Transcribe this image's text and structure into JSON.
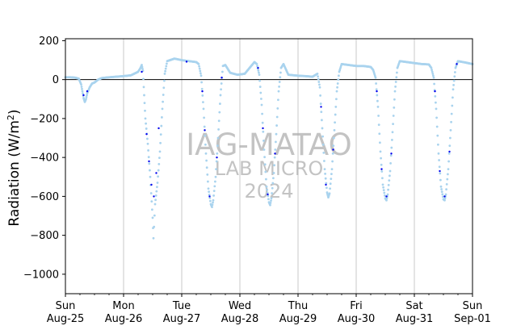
{
  "chart_data": {
    "type": "scatter",
    "ylabel": "Radiation (W/m²)",
    "ylabel_main": "Radiation (W/m",
    "ylabel_sup": "2",
    "ylabel_end": ")",
    "ylim": [
      -1100,
      210
    ],
    "yticks": [
      200,
      0,
      -200,
      -400,
      -600,
      -800,
      -1000
    ],
    "xlim": [
      "2024-08-25",
      "2024-09-01"
    ],
    "xticks": [
      {
        "date": "2024-08-25",
        "day": "Sun",
        "label": "Aug-25"
      },
      {
        "date": "2024-08-26",
        "day": "Mon",
        "label": "Aug-26"
      },
      {
        "date": "2024-08-27",
        "day": "Tue",
        "label": "Aug-27"
      },
      {
        "date": "2024-08-28",
        "day": "Wed",
        "label": "Aug-28"
      },
      {
        "date": "2024-08-29",
        "day": "Thu",
        "label": "Aug-29"
      },
      {
        "date": "2024-08-30",
        "day": "Fri",
        "label": "Aug-30"
      },
      {
        "date": "2024-08-31",
        "day": "Sat",
        "label": "Aug-31"
      },
      {
        "date": "2024-09-01",
        "day": "Sun",
        "label": "Sep-01"
      }
    ],
    "grid_x": true,
    "grid_y": false,
    "zero_line": true,
    "watermark": {
      "line1": "IAG-MATAO",
      "line2": "LAB MICRO",
      "line3": "2024"
    },
    "colors": {
      "series_light": "#a9d3ee",
      "series_dark": "#0000ee",
      "grid": "#c8c8c8",
      "watermark": "#b0b0b0"
    },
    "series": [
      {
        "color": "#a9d3ee",
        "points": [
          [
            "2024-08-25 00:00",
            12
          ],
          [
            "2024-08-25 02:00",
            12
          ],
          [
            "2024-08-25 04:00",
            10
          ],
          [
            "2024-08-25 05:30",
            5
          ],
          [
            "2024-08-25 06:30",
            -25
          ],
          [
            "2024-08-25 07:00",
            -60
          ],
          [
            "2024-08-25 07:30",
            -95
          ],
          [
            "2024-08-25 08:00",
            -115
          ],
          [
            "2024-08-25 08:30",
            -100
          ],
          [
            "2024-08-25 09:00",
            -70
          ],
          [
            "2024-08-25 10:00",
            -40
          ],
          [
            "2024-08-25 11:00",
            -20
          ],
          [
            "2024-08-25 12:00",
            -15
          ],
          [
            "2024-08-25 13:30",
            0
          ],
          [
            "2024-08-25 15:00",
            8
          ],
          [
            "2024-08-25 18:00",
            12
          ],
          [
            "2024-08-25 21:00",
            15
          ],
          [
            "2024-08-26 00:00",
            18
          ],
          [
            "2024-08-26 03:00",
            22
          ],
          [
            "2024-08-26 06:00",
            40
          ],
          [
            "2024-08-26 07:00",
            60
          ],
          [
            "2024-08-26 07:30",
            75
          ],
          [
            "2024-08-26 08:00",
            45
          ],
          [
            "2024-08-26 08:30",
            -80
          ],
          [
            "2024-08-26 09:00",
            -200
          ],
          [
            "2024-08-26 10:00",
            -330
          ],
          [
            "2024-08-26 11:00",
            -500
          ],
          [
            "2024-08-26 12:00",
            -710
          ],
          [
            "2024-08-26 12:20",
            -815
          ],
          [
            "2024-08-26 13:00",
            -640
          ],
          [
            "2024-08-26 14:00",
            -530
          ],
          [
            "2024-08-26 15:00",
            -370
          ],
          [
            "2024-08-26 16:00",
            -150
          ],
          [
            "2024-08-26 17:00",
            30
          ],
          [
            "2024-08-26 18:00",
            95
          ],
          [
            "2024-08-26 21:00",
            108
          ],
          [
            "2024-08-27 00:00",
            100
          ],
          [
            "2024-08-27 03:00",
            95
          ],
          [
            "2024-08-27 06:00",
            90
          ],
          [
            "2024-08-27 07:00",
            80
          ],
          [
            "2024-08-27 08:00",
            20
          ],
          [
            "2024-08-27 09:00",
            -150
          ],
          [
            "2024-08-27 10:00",
            -380
          ],
          [
            "2024-08-27 11:00",
            -560
          ],
          [
            "2024-08-27 12:00",
            -640
          ],
          [
            "2024-08-27 12:30",
            -655
          ],
          [
            "2024-08-27 13:00",
            -620
          ],
          [
            "2024-08-27 14:00",
            -500
          ],
          [
            "2024-08-27 15:00",
            -300
          ],
          [
            "2024-08-27 16:00",
            -80
          ],
          [
            "2024-08-27 17:00",
            70
          ],
          [
            "2024-08-27 18:00",
            75
          ],
          [
            "2024-08-27 20:00",
            35
          ],
          [
            "2024-08-27 23:00",
            25
          ],
          [
            "2024-08-28 02:00",
            30
          ],
          [
            "2024-08-28 06:00",
            90
          ],
          [
            "2024-08-28 07:00",
            80
          ],
          [
            "2024-08-28 08:00",
            25
          ],
          [
            "2024-08-28 09:00",
            -130
          ],
          [
            "2024-08-28 10:00",
            -360
          ],
          [
            "2024-08-28 11:00",
            -550
          ],
          [
            "2024-08-28 12:00",
            -630
          ],
          [
            "2024-08-28 12:30",
            -645
          ],
          [
            "2024-08-28 13:00",
            -610
          ],
          [
            "2024-08-28 14:00",
            -480
          ],
          [
            "2024-08-28 15:00",
            -280
          ],
          [
            "2024-08-28 16:00",
            -60
          ],
          [
            "2024-08-28 17:00",
            60
          ],
          [
            "2024-08-28 18:00",
            80
          ],
          [
            "2024-08-28 20:00",
            25
          ],
          [
            "2024-08-29 00:00",
            20
          ],
          [
            "2024-08-29 03:00",
            18
          ],
          [
            "2024-08-29 06:00",
            15
          ],
          [
            "2024-08-29 08:00",
            30
          ],
          [
            "2024-08-29 09:00",
            -40
          ],
          [
            "2024-08-29 10:00",
            -250
          ],
          [
            "2024-08-29 11:00",
            -460
          ],
          [
            "2024-08-29 12:00",
            -580
          ],
          [
            "2024-08-29 12:30",
            -605
          ],
          [
            "2024-08-29 13:00",
            -585
          ],
          [
            "2024-08-29 14:00",
            -460
          ],
          [
            "2024-08-29 15:00",
            -260
          ],
          [
            "2024-08-29 16:00",
            -60
          ],
          [
            "2024-08-29 17:00",
            40
          ],
          [
            "2024-08-29 18:00",
            80
          ],
          [
            "2024-08-29 21:00",
            75
          ],
          [
            "2024-08-30 00:00",
            70
          ],
          [
            "2024-08-30 03:00",
            70
          ],
          [
            "2024-08-30 06:00",
            65
          ],
          [
            "2024-08-30 07:00",
            50
          ],
          [
            "2024-08-30 08:00",
            10
          ],
          [
            "2024-08-30 09:00",
            -140
          ],
          [
            "2024-08-30 10:00",
            -370
          ],
          [
            "2024-08-30 11:00",
            -540
          ],
          [
            "2024-08-30 12:00",
            -610
          ],
          [
            "2024-08-30 12:30",
            -620
          ],
          [
            "2024-08-30 13:00",
            -590
          ],
          [
            "2024-08-30 14:00",
            -470
          ],
          [
            "2024-08-30 15:00",
            -270
          ],
          [
            "2024-08-30 16:00",
            -60
          ],
          [
            "2024-08-30 17:00",
            60
          ],
          [
            "2024-08-30 18:00",
            95
          ],
          [
            "2024-08-30 21:00",
            90
          ],
          [
            "2024-08-31 00:00",
            85
          ],
          [
            "2024-08-31 03:00",
            80
          ],
          [
            "2024-08-31 06:00",
            78
          ],
          [
            "2024-08-31 07:00",
            60
          ],
          [
            "2024-08-31 08:00",
            10
          ],
          [
            "2024-08-31 09:00",
            -150
          ],
          [
            "2024-08-31 10:00",
            -380
          ],
          [
            "2024-08-31 11:00",
            -550
          ],
          [
            "2024-08-31 12:00",
            -615
          ],
          [
            "2024-08-31 12:30",
            -620
          ],
          [
            "2024-08-31 13:00",
            -590
          ],
          [
            "2024-08-31 14:00",
            -460
          ],
          [
            "2024-08-31 15:00",
            -260
          ],
          [
            "2024-08-31 16:00",
            -50
          ],
          [
            "2024-08-31 17:00",
            60
          ],
          [
            "2024-08-31 18:00",
            95
          ],
          [
            "2024-08-31 21:00",
            88
          ],
          [
            "2024-09-01 00:00",
            80
          ]
        ]
      },
      {
        "color": "#0000ee",
        "points": [
          [
            "2024-08-25 07:30",
            -80
          ],
          [
            "2024-08-25 09:00",
            -60
          ],
          [
            "2024-08-26 07:30",
            40
          ],
          [
            "2024-08-26 09:30",
            -280
          ],
          [
            "2024-08-26 10:30",
            -420
          ],
          [
            "2024-08-26 11:30",
            -540
          ],
          [
            "2024-08-26 12:30",
            -600
          ],
          [
            "2024-08-26 13:30",
            -480
          ],
          [
            "2024-08-26 14:30",
            -250
          ],
          [
            "2024-08-27 02:00",
            92
          ],
          [
            "2024-08-27 08:30",
            -60
          ],
          [
            "2024-08-27 09:30",
            -260
          ],
          [
            "2024-08-27 11:30",
            -600
          ],
          [
            "2024-08-27 14:30",
            -400
          ],
          [
            "2024-08-27 16:30",
            10
          ],
          [
            "2024-08-28 07:30",
            60
          ],
          [
            "2024-08-28 09:30",
            -250
          ],
          [
            "2024-08-28 11:30",
            -590
          ],
          [
            "2024-08-28 14:30",
            -380
          ],
          [
            "2024-08-29 09:30",
            -140
          ],
          [
            "2024-08-29 11:30",
            -540
          ],
          [
            "2024-08-29 14:30",
            -360
          ],
          [
            "2024-08-30 08:30",
            -60
          ],
          [
            "2024-08-30 10:30",
            -460
          ],
          [
            "2024-08-30 12:30",
            -600
          ],
          [
            "2024-08-30 14:30",
            -380
          ],
          [
            "2024-08-31 08:30",
            -60
          ],
          [
            "2024-08-31 10:30",
            -470
          ],
          [
            "2024-08-31 12:30",
            -600
          ],
          [
            "2024-08-31 14:30",
            -370
          ],
          [
            "2024-08-31 17:30",
            80
          ]
        ]
      }
    ]
  }
}
